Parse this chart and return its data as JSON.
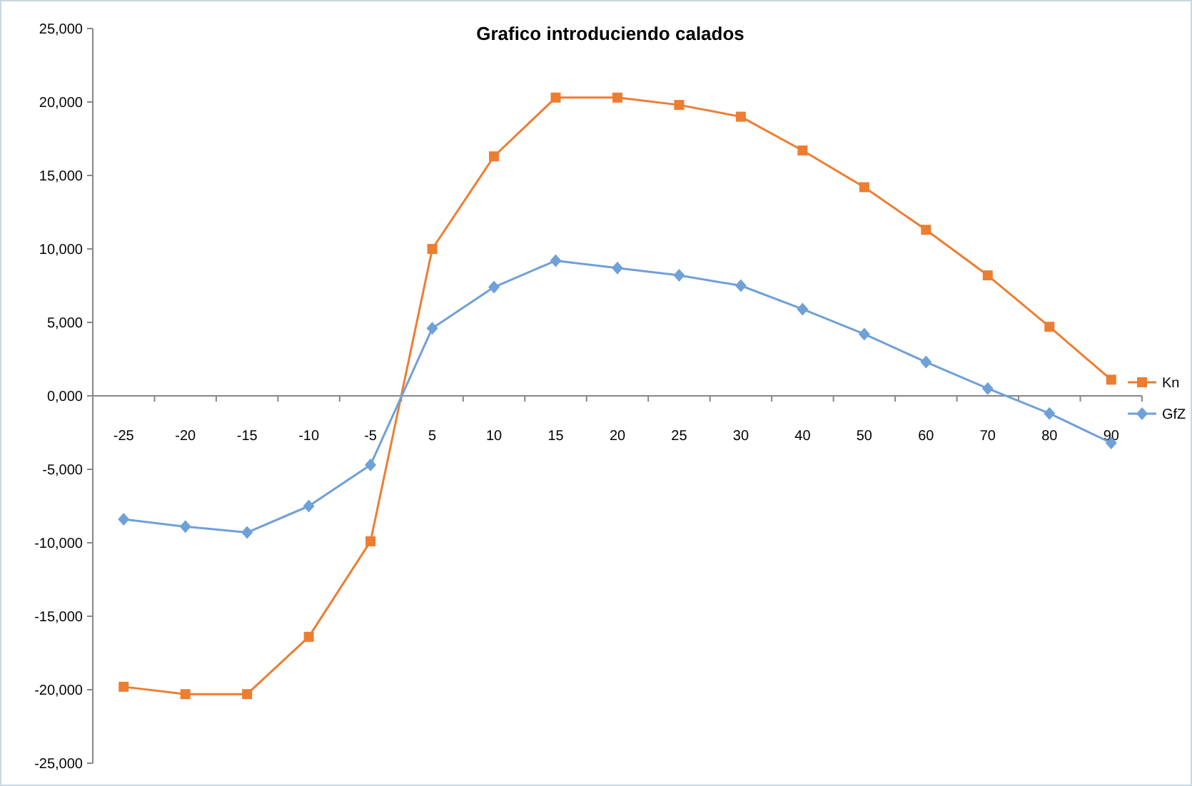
{
  "chart_data": {
    "type": "line",
    "title": "Grafico introduciendo calados",
    "categories": [
      "-25",
      "-20",
      "-15",
      "-10",
      "-5",
      "5",
      "10",
      "15",
      "20",
      "25",
      "30",
      "40",
      "50",
      "60",
      "70",
      "80",
      "90"
    ],
    "series": [
      {
        "name": "Kn",
        "color": "#ed7d31",
        "marker": "square",
        "values": [
          -19800,
          -20300,
          -20300,
          -16400,
          -9900,
          10000,
          16300,
          20300,
          20300,
          19800,
          19000,
          16700,
          14200,
          11300,
          8200,
          4700,
          1100
        ]
      },
      {
        "name": "GfZ",
        "color": "#6fa0d8",
        "marker": "diamond",
        "values": [
          -8400,
          -8900,
          -9300,
          -7500,
          -4700,
          4600,
          7400,
          9200,
          8700,
          8200,
          7500,
          5900,
          4200,
          2300,
          500,
          -1200,
          -3200
        ]
      }
    ],
    "ylim": [
      -25000,
      25000
    ],
    "yticks": [
      {
        "value": -25000,
        "label": "-25,000"
      },
      {
        "value": -20000,
        "label": "-20,000"
      },
      {
        "value": -15000,
        "label": "-15,000"
      },
      {
        "value": -10000,
        "label": "-10,000"
      },
      {
        "value": -5000,
        "label": "-5,000"
      },
      {
        "value": 0,
        "label": "0,000"
      },
      {
        "value": 5000,
        "label": "5,000"
      },
      {
        "value": 10000,
        "label": "10,000"
      },
      {
        "value": 15000,
        "label": "15,000"
      },
      {
        "value": 20000,
        "label": "20,000"
      },
      {
        "value": 25000,
        "label": "25,000"
      }
    ],
    "grid": false,
    "legend": "right",
    "line_style": "solid"
  }
}
